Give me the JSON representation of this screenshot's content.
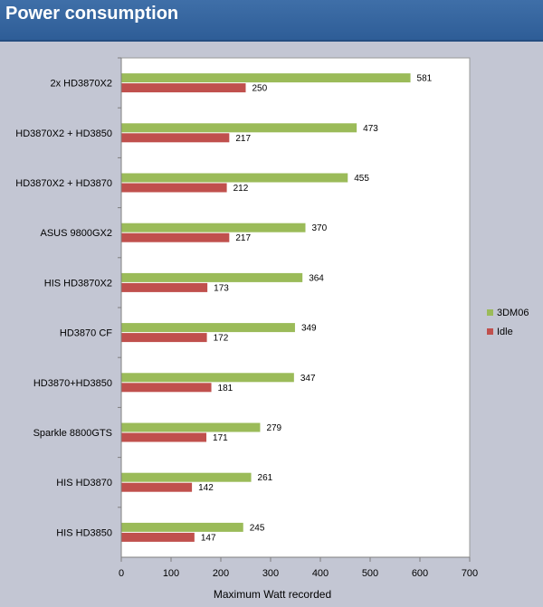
{
  "title": "Power consumption",
  "chart_data": {
    "type": "bar",
    "orientation": "horizontal",
    "categories": [
      "2x HD3870X2",
      "HD3870X2 + HD3850",
      "HD3870X2 + HD3870",
      "ASUS 9800GX2",
      "HIS HD3870X2",
      "HD3870 CF",
      "HD3870+HD3850",
      "Sparkle 8800GTS",
      "HIS HD3870",
      "HIS HD3850"
    ],
    "series": [
      {
        "name": "3DM06",
        "color": "#9bbb59",
        "values": [
          581,
          473,
          455,
          370,
          364,
          349,
          347,
          279,
          261,
          245
        ]
      },
      {
        "name": "Idle",
        "color": "#c0504d",
        "values": [
          250,
          217,
          212,
          217,
          173,
          172,
          181,
          171,
          142,
          147
        ]
      }
    ],
    "xlabel": "Maximum Watt recorded",
    "xlim": [
      0,
      700
    ],
    "xticks": [
      0,
      100,
      200,
      300,
      400,
      500,
      600,
      700
    ],
    "grid": false,
    "legend_position": "right"
  }
}
